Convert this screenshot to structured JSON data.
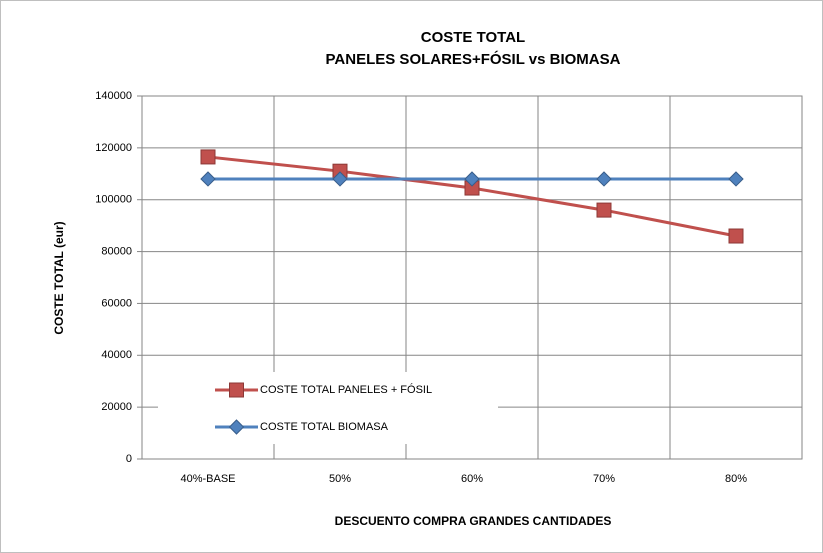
{
  "chart_data": {
    "type": "line",
    "title": [
      "COSTE TOTAL",
      "PANELES SOLARES+FÓSIL vs BIOMASA"
    ],
    "x_label": "DESCUENTO COMPRA GRANDES CANTIDADES",
    "y_label": "COSTE TOTAL (eur)",
    "categories": [
      "40%-BASE",
      "50%",
      "60%",
      "70%",
      "80%"
    ],
    "series": [
      {
        "name": "COSTE TOTAL PANELES + FÓSIL",
        "color": "#c0504d",
        "marker": "square",
        "values": [
          116500,
          111000,
          104500,
          96000,
          86000
        ]
      },
      {
        "name": "COSTE TOTAL BIOMASA",
        "color": "#4f81bd",
        "marker": "diamond",
        "values": [
          108000,
          108000,
          108000,
          108000,
          108000
        ]
      }
    ],
    "ylim": [
      0,
      140000
    ],
    "yticks": [
      0,
      20000,
      40000,
      60000,
      80000,
      100000,
      120000,
      140000
    ],
    "grid": true,
    "legend": "lower left"
  }
}
